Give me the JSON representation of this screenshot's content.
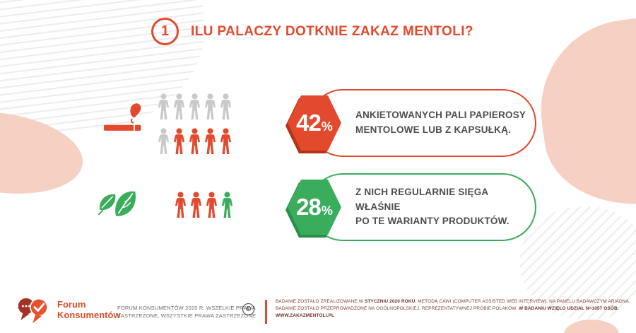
{
  "header": {
    "number": "1",
    "title": "ILU PALACZY DOTKNIE ZAKAZ MENTOLI?"
  },
  "colors": {
    "accent_red": "#e3492c",
    "accent_red_dark": "#b23318",
    "accent_green": "#3aad5c",
    "accent_green_dark": "#2c8f49",
    "person_gray": "#c9c9c9",
    "text_dark": "#4d4d4d",
    "pink_blob": "#f7d0c4",
    "footer_text": "#7d4033"
  },
  "stats": [
    {
      "id": "menthol-smokers",
      "icon": "cigarette-icon",
      "accent": "red",
      "percent": {
        "value": "42",
        "suffix": "%"
      },
      "text_lines": [
        "ANKIETOWANYCH PALI PAPIEROSY",
        "MENTOLOWE LUB Z KAPSUŁKĄ."
      ],
      "people": {
        "rows": [
          [
            "gray",
            "gray",
            "gray",
            "gray",
            "gray"
          ],
          [
            "gray",
            "red",
            "red",
            "red",
            "red"
          ]
        ]
      }
    },
    {
      "id": "regular-menthol-users",
      "icon": "mint-leaves-icon",
      "accent": "green",
      "percent": {
        "value": "28",
        "suffix": "%"
      },
      "text_lines": [
        "Z NICH REGULARNIE SIĘGA WŁAŚNIE",
        "PO TE WARIANTY PRODUKTÓW."
      ],
      "people": {
        "rows": [
          [
            "red",
            "red",
            "red",
            "green"
          ]
        ]
      }
    }
  ],
  "footer": {
    "logo": {
      "line1": "Forum",
      "line2": "Konsumentów"
    },
    "copyright_lines": [
      "FORUM KONSUMENTÓW 2020 R. WSZELKIE PRAWA",
      "ZASTRZEŻONE, WSZYSTKIE PRAWA ZASTRZEŻONE"
    ],
    "copyright_symbol": "©",
    "research_lines": [
      [
        {
          "t": "BADANIE ZOSTAŁO ZREALIZOWANE W "
        },
        {
          "t": "STYCZNIU 2020 ROKU",
          "b": true
        },
        {
          "t": ", METODĄ CAWI (COMPUTER ASSISTED WEB INTERVIEW), NA PANELU BADAWCZYM ARIADNA."
        }
      ],
      [
        {
          "t": "BADANIE ZOSTAŁO PRZEPROWADZONE NA OGÓLNOPOLSKIEJ,  REPREZENTATYWNEJ PRÓBIE POLAKÓW. "
        },
        {
          "t": "W BADANIU WZIĘŁO UDZIAŁ N=1057 OSÓB.",
          "b": true
        }
      ],
      [
        {
          "t": "WWW.ZAKAZMENTOLI.PL",
          "b": true
        }
      ]
    ]
  }
}
